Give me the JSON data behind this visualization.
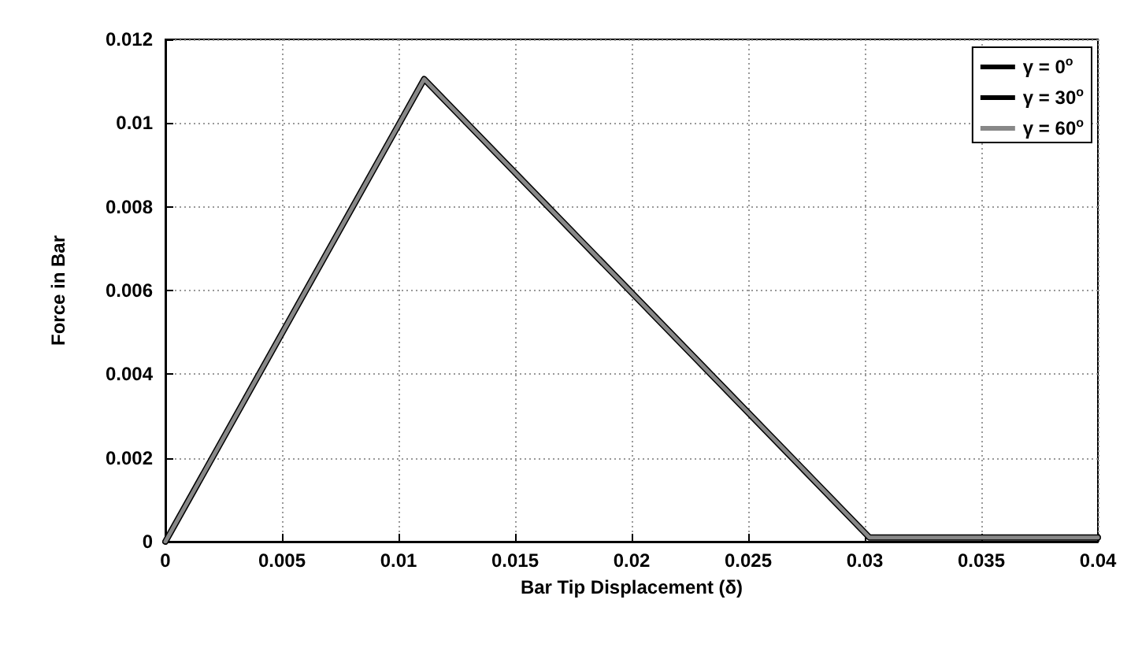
{
  "chart_data": {
    "type": "line",
    "xlabel": "Bar Tip Displacement (δ)",
    "ylabel": "Force in Bar",
    "x": [
      0,
      0.0111,
      0.0302,
      0.04
    ],
    "series": [
      {
        "name": "γ = 0$^{o}$",
        "color": "#000000",
        "line_style": "solid",
        "values": [
          0,
          0.01105,
          0.0001,
          0.0001
        ]
      },
      {
        "name": "γ = 30$^{o}$",
        "color": "#000000",
        "line_style": "dotted",
        "values": [
          null,
          null,
          null,
          null
        ]
      },
      {
        "name": "γ = 60$^{o}$",
        "color": "#888888",
        "line_style": "solid",
        "values": [
          0,
          0.01105,
          0.0001,
          0.0001
        ]
      }
    ],
    "xlim": [
      0,
      0.04
    ],
    "xticks": [
      0,
      0.005,
      0.01,
      0.015,
      0.02,
      0.025,
      0.03,
      0.035,
      0.04
    ],
    "ylim": [
      0,
      0.012
    ],
    "yticks": [
      0,
      0.002,
      0.004,
      0.006,
      0.008,
      0.01,
      0.012
    ],
    "grid": true,
    "legend": "top right",
    "marker": "none"
  }
}
